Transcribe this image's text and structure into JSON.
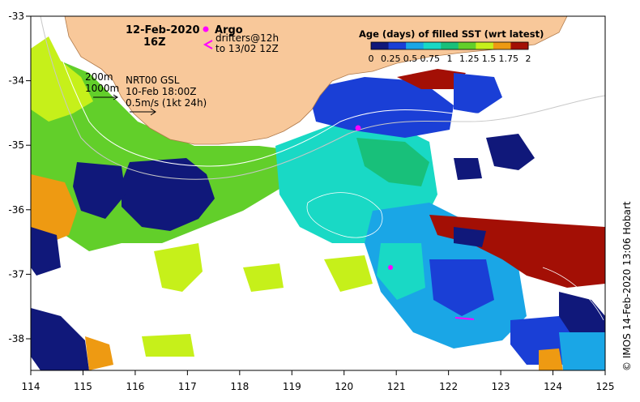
{
  "map": {
    "date": "12-Feb-2020",
    "time": "16Z",
    "argo_label": "Argo",
    "drifters_label": "drifters@12h",
    "drifters_range": "to 13/02 12Z",
    "contour_200": "200m",
    "contour_1000": "1000m",
    "source": "NRT00 GSL",
    "source_time": "10-Feb 18:00Z",
    "vector_scale": "0.5m/s (1kt 24h)",
    "colorbar_title": "Age (days) of filled SST (wrt latest)",
    "colorbar_ticks": [
      "0",
      "0.25",
      "0.5",
      "0.75",
      "1",
      "1.25",
      "1.5",
      "1.75",
      "2"
    ],
    "credit": "© IMOS 14-Feb-2020 13:06 Hobart",
    "x_axis": {
      "ticks": [
        "114",
        "115",
        "116",
        "117",
        "118",
        "119",
        "120",
        "121",
        "122",
        "123",
        "124",
        "125"
      ]
    },
    "y_axis": {
      "ticks": [
        "-33",
        "-34",
        "-35",
        "-36",
        "-37",
        "-38"
      ]
    },
    "colors": {
      "land": "#f8c89a",
      "age_0": "#10187a",
      "age_0_25": "#1a3fd6",
      "age_0_5": "#1aa6e6",
      "age_0_75": "#19d9c5",
      "age_1": "#18c07a",
      "age_1_25": "#62cf2a",
      "age_1_5": "#c6f01a",
      "age_1_75": "#ee9a12",
      "age_2": "#a30f05",
      "argo": "#ff00ff"
    }
  }
}
